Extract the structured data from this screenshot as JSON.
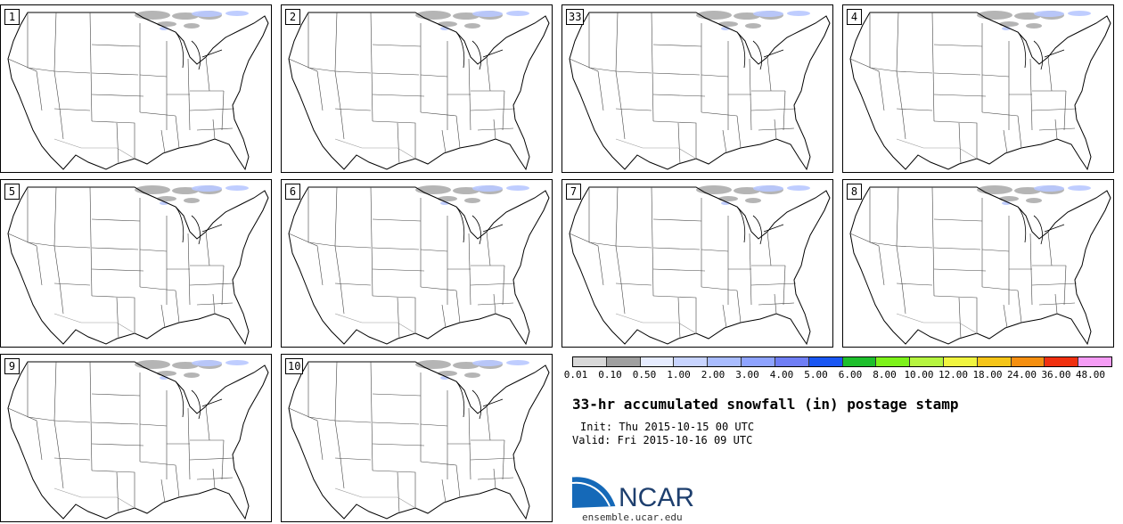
{
  "panels": [
    {
      "label": "1"
    },
    {
      "label": "2"
    },
    {
      "label": "33"
    },
    {
      "label": "4"
    },
    {
      "label": "5"
    },
    {
      "label": "6"
    },
    {
      "label": "7"
    },
    {
      "label": "8"
    },
    {
      "label": "9"
    },
    {
      "label": "10"
    }
  ],
  "colorbar": {
    "colors": [
      "#d8d8d8",
      "#a0a0a0",
      "#e6ecff",
      "#c8d4ff",
      "#a9bcff",
      "#8ea3ff",
      "#6f7ef5",
      "#1a56f2",
      "#1dbf2c",
      "#7df21a",
      "#b6f540",
      "#f0f540",
      "#f5c518",
      "#f58f10",
      "#f03010",
      "#f59cf5"
    ],
    "tick_labels": [
      "0.01",
      "0.10",
      "0.50",
      "1.00",
      "2.00",
      "3.00",
      "4.00",
      "5.00",
      "6.00",
      "8.00",
      "10.00",
      "12.00",
      "18.00",
      "24.00",
      "36.00",
      "48.00"
    ]
  },
  "title": "33-hr accumulated snowfall (in) postage stamp",
  "init_line": "Init: Thu 2015-10-15 00 UTC",
  "valid_line": "Valid: Fri 2015-10-16 09 UTC",
  "logo_text": "NCAR",
  "site": "ensemble.ucar.edu"
}
